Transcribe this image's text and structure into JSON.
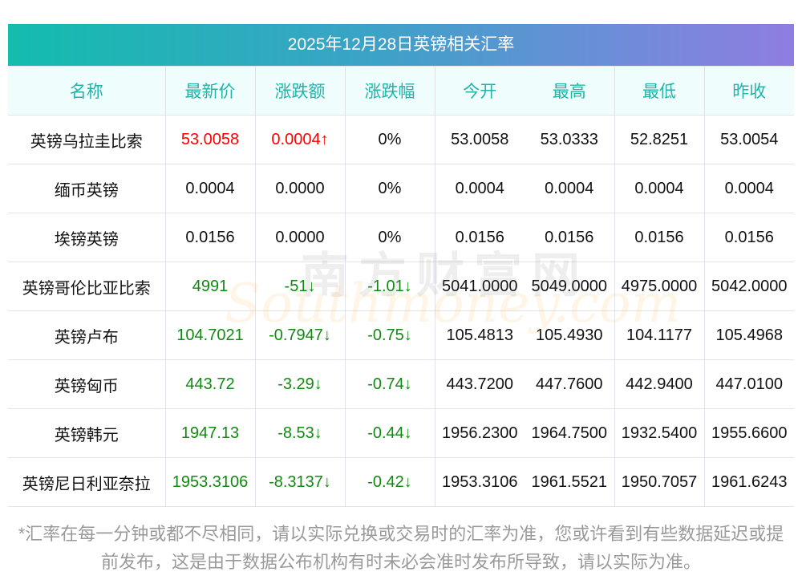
{
  "title": "2025年12月28日英镑相关汇率",
  "headers": [
    "名称",
    "最新价",
    "涨跌额",
    "涨跌幅",
    "今开",
    "最高",
    "最低",
    "昨收"
  ],
  "rows": [
    {
      "name": "英镑乌拉圭比索",
      "latest": "53.0058",
      "change": "0.0004↑",
      "pct": "0%",
      "open": "53.0058",
      "high": "53.0333",
      "low": "52.8251",
      "prev": "53.0054",
      "dir": "up",
      "pct_dir": "flat"
    },
    {
      "name": "缅币英镑",
      "latest": "0.0004",
      "change": "0.0000",
      "pct": "0%",
      "open": "0.0004",
      "high": "0.0004",
      "low": "0.0004",
      "prev": "0.0004",
      "dir": "flat",
      "pct_dir": "flat"
    },
    {
      "name": "埃镑英镑",
      "latest": "0.0156",
      "change": "0.0000",
      "pct": "0%",
      "open": "0.0156",
      "high": "0.0156",
      "low": "0.0156",
      "prev": "0.0156",
      "dir": "flat",
      "pct_dir": "flat"
    },
    {
      "name": "英镑哥伦比亚比索",
      "latest": "4991",
      "change": "-51↓",
      "pct": "-1.01↓",
      "open": "5041.0000",
      "high": "5049.0000",
      "low": "4975.0000",
      "prev": "5042.0000",
      "dir": "down",
      "pct_dir": "down"
    },
    {
      "name": "英镑卢布",
      "latest": "104.7021",
      "change": "-0.7947↓",
      "pct": "-0.75↓",
      "open": "105.4813",
      "high": "105.4930",
      "low": "104.1177",
      "prev": "105.4968",
      "dir": "down",
      "pct_dir": "down"
    },
    {
      "name": "英镑匈币",
      "latest": "443.72",
      "change": "-3.29↓",
      "pct": "-0.74↓",
      "open": "443.7200",
      "high": "447.7600",
      "low": "442.9400",
      "prev": "447.0100",
      "dir": "down",
      "pct_dir": "down"
    },
    {
      "name": "英镑韩元",
      "latest": "1947.13",
      "change": "-8.53↓",
      "pct": "-0.44↓",
      "open": "1956.2300",
      "high": "1964.7500",
      "low": "1932.5400",
      "prev": "1955.6600",
      "dir": "down",
      "pct_dir": "down"
    },
    {
      "name": "英镑尼日利亚奈拉",
      "latest": "1953.3106",
      "change": "-8.3137↓",
      "pct": "-0.42↓",
      "open": "1953.3106",
      "high": "1961.5521",
      "low": "1950.7057",
      "prev": "1961.6243",
      "dir": "down",
      "pct_dir": "down"
    }
  ],
  "watermark": {
    "cn": "南方财富网",
    "en": "Southmoney.com"
  },
  "note": "*汇率在每一分钟或都不尽相同，请以实际兑换或交易时的汇率为准，您或许看到有些数据延迟或提前发布，这是由于数据公布机构有时未必会准时发布所导致，请以实际为准。",
  "colors": {
    "up": "#ff0000",
    "down": "#118a11",
    "header_text": "#23b3a8"
  }
}
